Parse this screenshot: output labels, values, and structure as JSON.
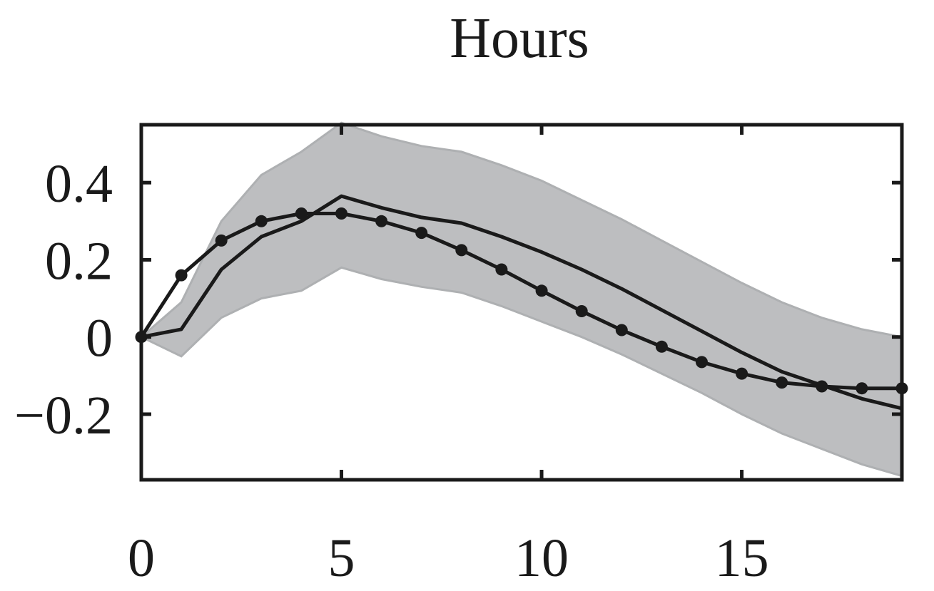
{
  "chart_data": {
    "type": "line",
    "title": "Hours",
    "xlabel": "",
    "ylabel": "",
    "xlim": [
      0,
      19
    ],
    "ylim": [
      -0.37,
      0.55
    ],
    "x_ticks": [
      0,
      5,
      10,
      15
    ],
    "x_tick_labels": [
      "0",
      "5",
      "10",
      "15"
    ],
    "y_ticks": [
      -0.2,
      0,
      0.2,
      0.4
    ],
    "y_tick_labels": [
      "−0.2",
      "0",
      "0.2",
      "0.4"
    ],
    "grid": false,
    "x": [
      0,
      1,
      2,
      3,
      4,
      5,
      6,
      7,
      8,
      9,
      10,
      11,
      12,
      13,
      14,
      15,
      16,
      17,
      18,
      19
    ],
    "band": {
      "color": "#bdbec0",
      "lower": [
        0.0,
        -0.05,
        0.05,
        0.1,
        0.12,
        0.18,
        0.15,
        0.13,
        0.115,
        0.08,
        0.04,
        0.0,
        -0.045,
        -0.095,
        -0.145,
        -0.2,
        -0.25,
        -0.29,
        -0.33,
        -0.36
      ],
      "upper": [
        0.0,
        0.09,
        0.3,
        0.42,
        0.48,
        0.555,
        0.52,
        0.495,
        0.48,
        0.445,
        0.405,
        0.355,
        0.305,
        0.25,
        0.195,
        0.14,
        0.09,
        0.05,
        0.02,
        0.0
      ]
    },
    "series": [
      {
        "style": "solid",
        "color": "#1a1a1a",
        "values": [
          0.0,
          0.02,
          0.175,
          0.26,
          0.3,
          0.365,
          0.335,
          0.31,
          0.295,
          0.26,
          0.22,
          0.175,
          0.125,
          0.07,
          0.015,
          -0.04,
          -0.09,
          -0.125,
          -0.16,
          -0.185
        ]
      },
      {
        "style": "dotted-markers",
        "color": "#1a1a1a",
        "values": [
          0.0,
          0.16,
          0.25,
          0.3,
          0.32,
          0.32,
          0.3,
          0.27,
          0.225,
          0.175,
          0.12,
          0.067,
          0.018,
          -0.025,
          -0.065,
          -0.095,
          -0.118,
          -0.128,
          -0.133,
          -0.133
        ]
      }
    ]
  }
}
